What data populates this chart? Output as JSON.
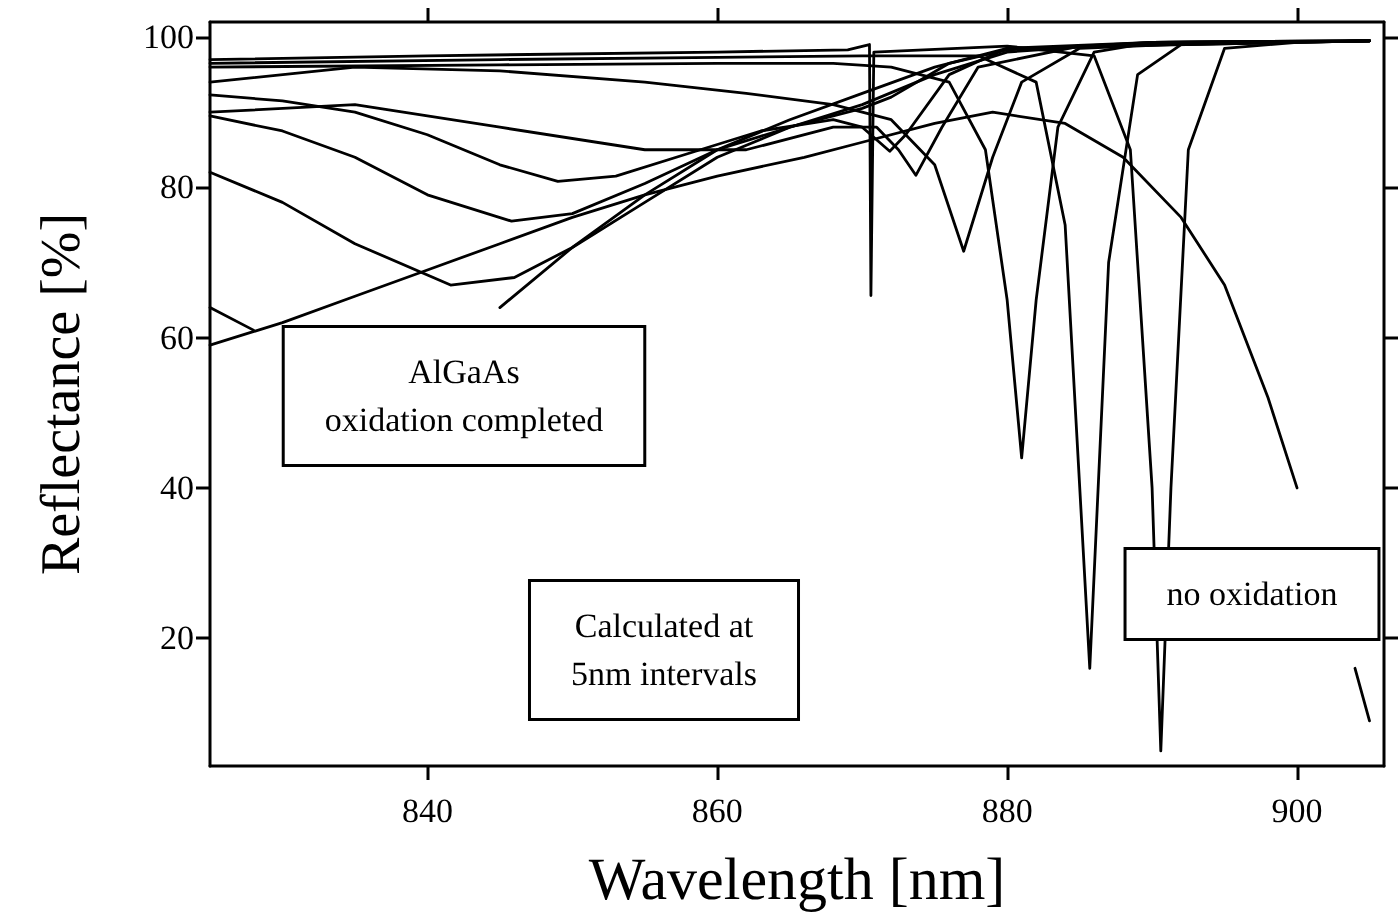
{
  "chart_data": {
    "type": "line",
    "xlabel": "Wavelength [nm]",
    "ylabel": "Reflectance [%]",
    "xlim": [
      825,
      906
    ],
    "xticks": [
      840,
      860,
      880,
      900
    ],
    "ylim": [
      3,
      102
    ],
    "yticks": [
      20,
      40,
      60,
      80,
      100
    ],
    "grid": false,
    "marker": "none",
    "line_style": "solid",
    "annotations": [
      "AlGaAs\noxidation completed",
      "Calculated at\n5nm intervals",
      "no oxidation"
    ],
    "series": [
      {
        "color": "#000000",
        "x": [
          825,
          830,
          835,
          840,
          845,
          850,
          855,
          860,
          866,
          870,
          875,
          879,
          884,
          888,
          892,
          895,
          898,
          900,
          902,
          904,
          905
        ],
        "values": [
          59,
          62,
          65.5,
          69,
          72.5,
          76,
          79,
          81.5,
          84,
          86,
          88.5,
          90,
          88.5,
          84,
          76,
          67,
          52,
          40,
          null,
          16,
          9
        ]
      },
      {
        "color": "#000000",
        "x": [
          825,
          840,
          860,
          869,
          870.5,
          870.6,
          870.8,
          880,
          886,
          888.5,
          890,
          890.6,
          891.3,
          892.5,
          895,
          900,
          905
        ],
        "values": [
          97,
          97.5,
          98,
          98.3,
          99,
          65.6,
          98,
          98.8,
          97.5,
          85,
          40,
          5,
          40,
          85,
          98.5,
          99.3,
          99.5
        ]
      },
      {
        "color": "#000000",
        "x": [
          825,
          845,
          860,
          870,
          878,
          882,
          884,
          885.7,
          887,
          889,
          892,
          905
        ],
        "values": [
          96.5,
          97,
          97.3,
          97.5,
          97.5,
          94,
          75,
          16,
          70,
          95,
          99,
          99.5
        ]
      },
      {
        "color": "#000000",
        "x": [
          825,
          845,
          860,
          868,
          872,
          876,
          878.5,
          880,
          881,
          882,
          883.5,
          886,
          890,
          905
        ],
        "values": [
          96,
          96.3,
          96.5,
          96.5,
          96,
          94,
          85,
          65,
          44,
          65,
          88,
          98,
          99.3,
          99.5
        ]
      },
      {
        "color": "#000000",
        "x": [
          825,
          835,
          845,
          855,
          862,
          868,
          872,
          875,
          877,
          879,
          881,
          885,
          895,
          905
        ],
        "values": [
          94,
          96,
          95.5,
          94,
          92.5,
          91,
          89,
          83,
          71.5,
          84,
          94,
          98.5,
          99.3,
          99.5
        ]
      },
      {
        "color": "#000000",
        "x": [
          825,
          835,
          845,
          855,
          862,
          868,
          871,
          872.5,
          873.7,
          875.5,
          878,
          885,
          905
        ],
        "values": [
          90,
          91,
          88,
          85,
          85,
          88,
          88,
          85,
          81.6,
          88,
          96,
          98.8,
          99.5
        ]
      },
      {
        "color": "#000000",
        "x": [
          825,
          830,
          835,
          840,
          845,
          849,
          853,
          858,
          863,
          868,
          870,
          871.9,
          873,
          876,
          880,
          890,
          905
        ],
        "values": [
          92.3,
          91.5,
          90,
          87,
          83,
          80.8,
          81.5,
          84.5,
          87.5,
          89,
          88,
          84.8,
          87,
          95,
          98.5,
          99.3,
          99.5
        ]
      },
      {
        "color": "#000000",
        "x": [
          825,
          830,
          835,
          840,
          845.8,
          850,
          855,
          860,
          865,
          870,
          872,
          876,
          880,
          890,
          905
        ],
        "values": [
          89.5,
          87.5,
          84,
          79,
          75.5,
          76.5,
          80.5,
          85,
          88,
          90.5,
          92,
          96.5,
          98.3,
          99.3,
          99.5
        ]
      },
      {
        "color": "#000000",
        "x": [
          825,
          830,
          835,
          841.6,
          846,
          850,
          855,
          860,
          865,
          870,
          875,
          880,
          890,
          905
        ],
        "values": [
          82,
          78,
          72.5,
          67,
          68,
          72,
          78,
          84,
          88,
          91,
          95,
          98,
          99.3,
          99.5
        ]
      },
      {
        "color": "#000000",
        "x": [
          825,
          828,
          832,
          836,
          840,
          845,
          850,
          855,
          860,
          865,
          870,
          875,
          880,
          905
        ],
        "values": [
          64,
          61,
          null,
          null,
          null,
          64,
          72,
          79,
          85,
          89,
          92.5,
          96,
          98.5,
          99.5
        ]
      }
    ]
  }
}
